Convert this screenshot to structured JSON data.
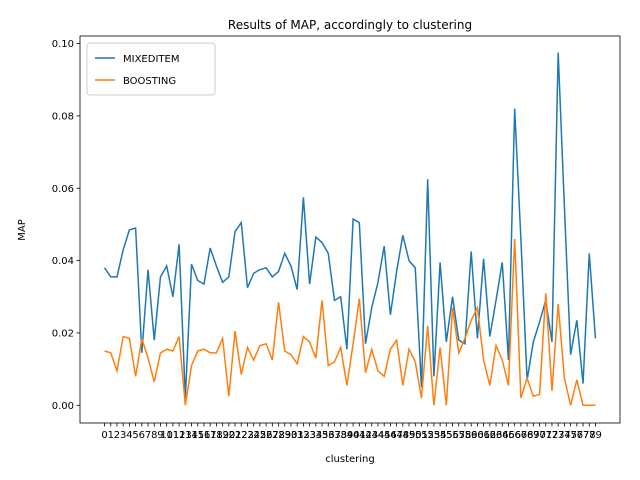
{
  "chart_data": {
    "type": "line",
    "title": "Results of MAP, accordingly to clustering",
    "xlabel": "clustering",
    "ylabel": "MAP",
    "x": [
      0,
      1,
      2,
      3,
      4,
      5,
      6,
      7,
      8,
      9,
      10,
      11,
      12,
      13,
      14,
      15,
      16,
      17,
      18,
      19,
      20,
      21,
      22,
      23,
      24,
      25,
      26,
      27,
      28,
      29,
      30,
      31,
      32,
      33,
      34,
      35,
      36,
      37,
      38,
      39,
      40,
      41,
      42,
      43,
      44,
      45,
      46,
      47,
      48,
      49,
      50,
      51,
      52,
      53,
      54,
      55,
      56,
      57,
      58,
      59,
      60,
      61,
      62,
      63,
      64,
      65,
      66,
      67,
      68,
      69,
      70,
      71,
      72,
      73,
      74,
      75,
      76,
      77,
      78,
      79
    ],
    "xlim": [
      -3.95,
      82.95
    ],
    "xticks": [
      0,
      1,
      2,
      3,
      4,
      5,
      6,
      7,
      8,
      9,
      10,
      11,
      12,
      13,
      14,
      15,
      16,
      17,
      18,
      19,
      20,
      21,
      22,
      23,
      24,
      25,
      26,
      27,
      28,
      29,
      30,
      31,
      32,
      33,
      34,
      35,
      36,
      37,
      38,
      39,
      40,
      41,
      42,
      43,
      44,
      45,
      46,
      47,
      48,
      49,
      50,
      51,
      52,
      53,
      54,
      55,
      56,
      57,
      58,
      59,
      60,
      61,
      62,
      63,
      64,
      65,
      66,
      67,
      68,
      69,
      70,
      71,
      72,
      73,
      74,
      75,
      76,
      77,
      78,
      79
    ],
    "ylim": [
      -0.0049,
      0.1021
    ],
    "yticks": [
      {
        "value": 0,
        "label": "0.00"
      },
      {
        "value": 0.02,
        "label": "0.02"
      },
      {
        "value": 0.04,
        "label": "0.04"
      },
      {
        "value": 0.06,
        "label": "0.06"
      },
      {
        "value": 0.08,
        "label": "0.08"
      },
      {
        "value": 0.1,
        "label": "0.10"
      }
    ],
    "legend": "upper left",
    "series": [
      {
        "name": "MIXEDITEM",
        "color": "#1f77b4",
        "values": [
          0.038,
          0.0355,
          0.0355,
          0.043,
          0.0485,
          0.049,
          0.0145,
          0.0375,
          0.018,
          0.0355,
          0.0385,
          0.03,
          0.0445,
          0.002,
          0.039,
          0.0345,
          0.0335,
          0.0435,
          0.0385,
          0.034,
          0.0355,
          0.048,
          0.0505,
          0.0325,
          0.0365,
          0.0375,
          0.038,
          0.0355,
          0.037,
          0.042,
          0.0385,
          0.032,
          0.0575,
          0.0335,
          0.0465,
          0.045,
          0.042,
          0.029,
          0.03,
          0.0155,
          0.0515,
          0.0505,
          0.017,
          0.027,
          0.034,
          0.044,
          0.025,
          0.037,
          0.047,
          0.04,
          0.038,
          0.005,
          0.0625,
          0.008,
          0.0395,
          0.0175,
          0.03,
          0.018,
          0.017,
          0.0425,
          0.0185,
          0.0405,
          0.019,
          0.029,
          0.0395,
          0.0125,
          0.082,
          0.046,
          0.007,
          0.0175,
          0.023,
          0.029,
          0.0175,
          0.0975,
          0.055,
          0.014,
          0.0235,
          0.006,
          0.042,
          0.0185
        ]
      },
      {
        "name": "BOOSTING",
        "color": "#ff7f0e",
        "values": [
          0.015,
          0.0145,
          0.0095,
          0.019,
          0.0185,
          0.008,
          0.0185,
          0.013,
          0.0065,
          0.0145,
          0.0155,
          0.015,
          0.019,
          0.0,
          0.011,
          0.015,
          0.0155,
          0.0145,
          0.0145,
          0.0185,
          0.0025,
          0.0205,
          0.0085,
          0.016,
          0.0125,
          0.0165,
          0.017,
          0.0125,
          0.0285,
          0.015,
          0.014,
          0.0115,
          0.019,
          0.0175,
          0.013,
          0.029,
          0.011,
          0.012,
          0.016,
          0.0055,
          0.017,
          0.0295,
          0.009,
          0.0155,
          0.0095,
          0.008,
          0.0155,
          0.018,
          0.0055,
          0.0155,
          0.012,
          0.002,
          0.022,
          0.0,
          0.016,
          0.0,
          0.027,
          0.0145,
          0.0185,
          0.0235,
          0.027,
          0.0125,
          0.0055,
          0.0165,
          0.0125,
          0.0055,
          0.046,
          0.002,
          0.0075,
          0.0025,
          0.003,
          0.031,
          0.004,
          0.028,
          0.0075,
          0.0,
          0.007,
          0.0,
          0.0,
          0.0
        ]
      }
    ]
  }
}
